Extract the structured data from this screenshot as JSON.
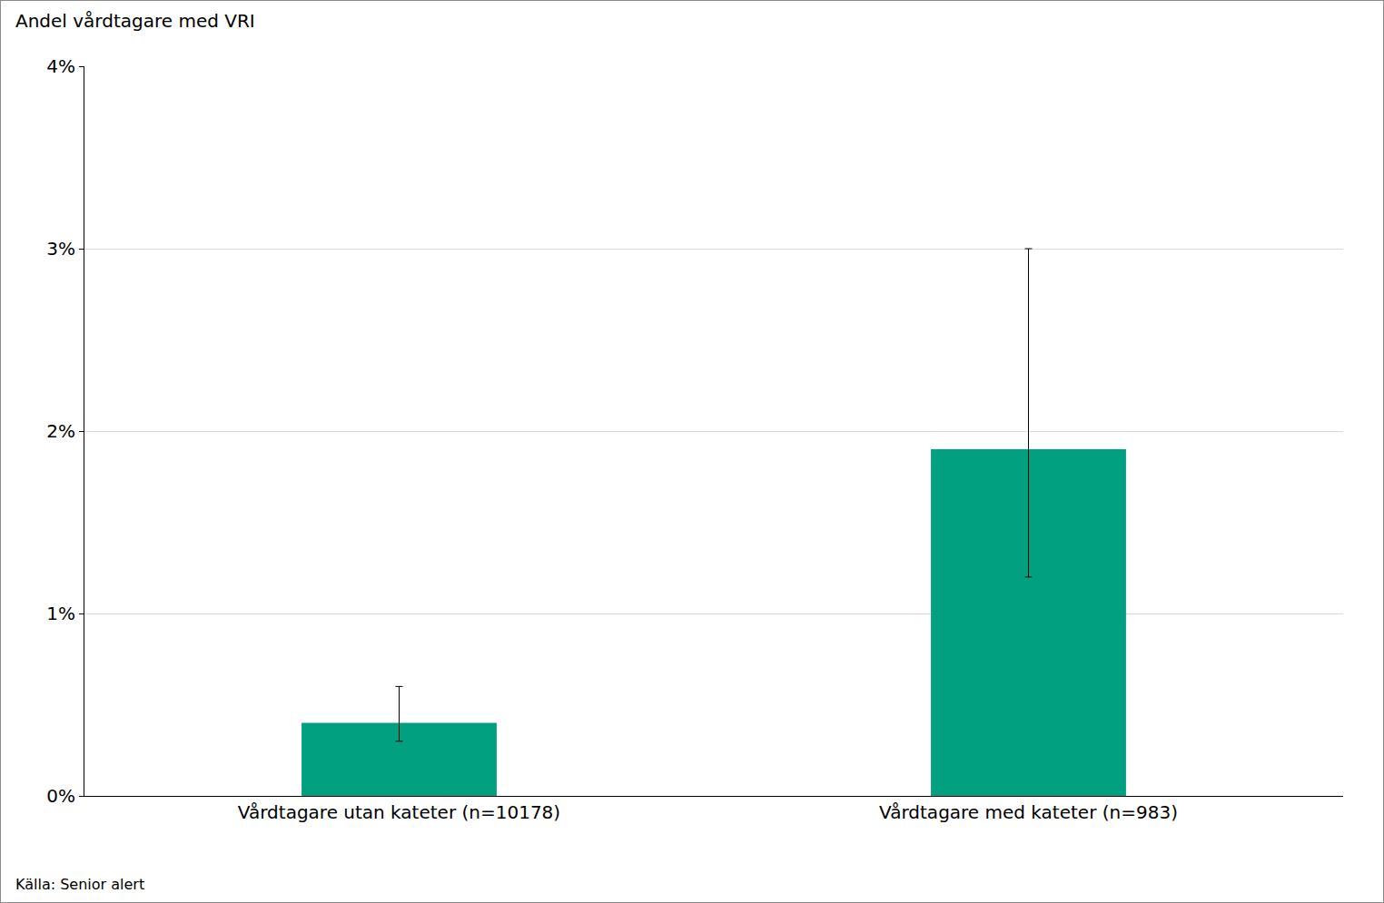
{
  "chart_data": {
    "type": "bar",
    "ylabel": "Andel vårdtagare med VRI",
    "source": "Källa: Senior alert",
    "categories": [
      "Vårdtagare utan kateter (n=10178)",
      "Vårdtagare med kateter (n=983)"
    ],
    "values": [
      0.4,
      1.9
    ],
    "ci_lower": [
      0.3,
      1.2
    ],
    "ci_upper": [
      0.6,
      3.0
    ],
    "color": "#00a080",
    "ylim": [
      0,
      4
    ],
    "yticks": [
      {
        "value": 0,
        "label": "0%"
      },
      {
        "value": 1,
        "label": "1%"
      },
      {
        "value": 2,
        "label": "2%"
      },
      {
        "value": 3,
        "label": "3%"
      },
      {
        "value": 4,
        "label": "4%"
      }
    ],
    "grid": true
  }
}
